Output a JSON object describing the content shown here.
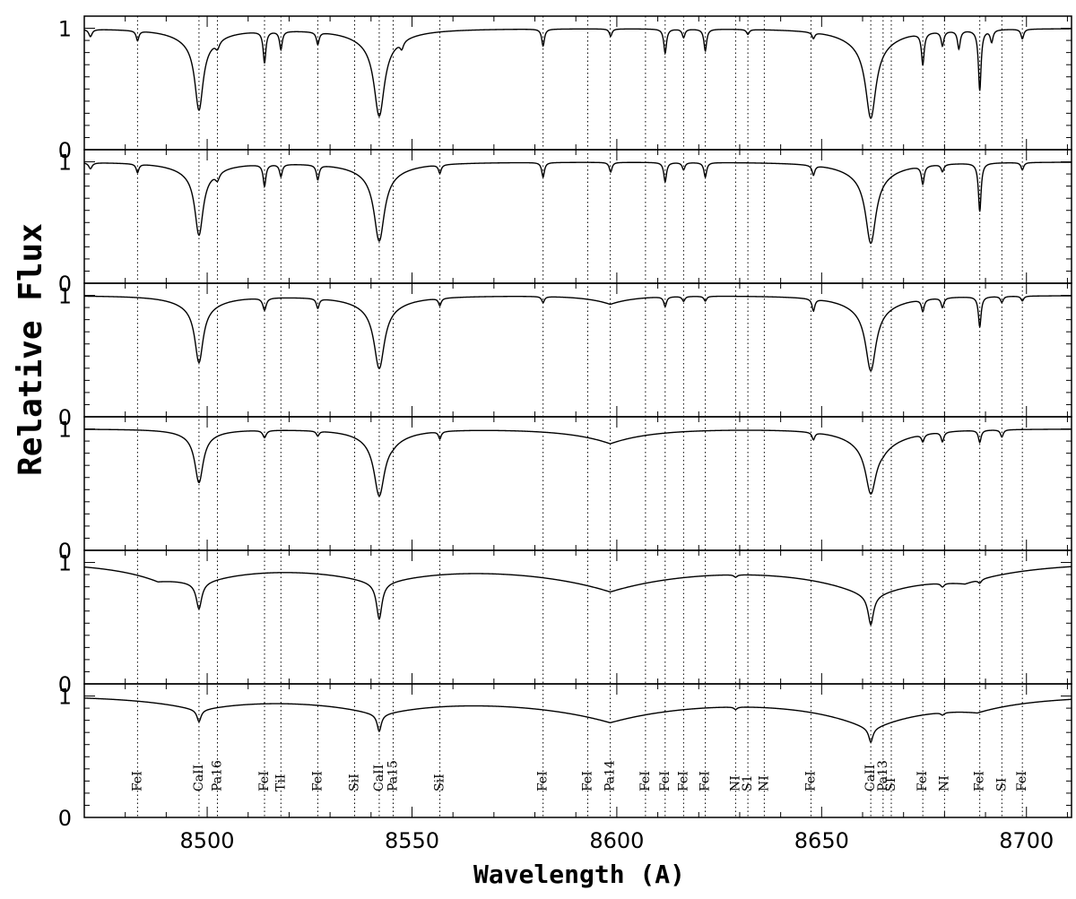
{
  "chart_data": {
    "type": "line",
    "xlabel": "Wavelength (A)",
    "ylabel": "Relative Flux",
    "xlim": [
      8470,
      8711
    ],
    "ylim": [
      0,
      1.1
    ],
    "x_ticks": [
      8500,
      8550,
      8600,
      8650,
      8700
    ],
    "x_tick_labels": [
      "8500",
      "8550",
      "8600",
      "8650",
      "8700"
    ],
    "y_ticks": [
      0,
      1
    ],
    "y_tick_labels": [
      "0",
      "1"
    ],
    "panel_count": 6,
    "grid": false,
    "line_markers": [
      {
        "wavelength": 8483,
        "label": "FeI"
      },
      {
        "wavelength": 8498,
        "label": "CaII"
      },
      {
        "wavelength": 8502.5,
        "label": "Pa16"
      },
      {
        "wavelength": 8514,
        "label": "FeI"
      },
      {
        "wavelength": 8518,
        "label": "TiI"
      },
      {
        "wavelength": 8527,
        "label": "FeI"
      },
      {
        "wavelength": 8536,
        "label": "SiI"
      },
      {
        "wavelength": 8542,
        "label": "CaII"
      },
      {
        "wavelength": 8545.4,
        "label": "Pa15"
      },
      {
        "wavelength": 8556.8,
        "label": "SiI"
      },
      {
        "wavelength": 8582,
        "label": "FeI"
      },
      {
        "wavelength": 8592.9,
        "label": "FeI"
      },
      {
        "wavelength": 8598.4,
        "label": "Pa14"
      },
      {
        "wavelength": 8607,
        "label": "FeI"
      },
      {
        "wavelength": 8611.8,
        "label": "FeI"
      },
      {
        "wavelength": 8616.3,
        "label": "FeI"
      },
      {
        "wavelength": 8621.6,
        "label": "FeI"
      },
      {
        "wavelength": 8629,
        "label": "NI"
      },
      {
        "wavelength": 8632,
        "label": "S1"
      },
      {
        "wavelength": 8636,
        "label": "NI"
      },
      {
        "wavelength": 8647.4,
        "label": "FeI"
      },
      {
        "wavelength": 8662,
        "label": "CaII"
      },
      {
        "wavelength": 8665,
        "label": "Pa13"
      },
      {
        "wavelength": 8667,
        "label": "SI"
      },
      {
        "wavelength": 8674.7,
        "label": "FeI"
      },
      {
        "wavelength": 8680,
        "label": "NI"
      },
      {
        "wavelength": 8688.6,
        "label": "FeI"
      },
      {
        "wavelength": 8694,
        "label": "SI"
      },
      {
        "wavelength": 8699,
        "label": "FeI"
      }
    ],
    "series": [
      {
        "continuum": 1.0,
        "wide_lines": [
          [
            8498,
            0.55,
            1.2
          ],
          [
            8542,
            0.6,
            1.5
          ],
          [
            8662,
            0.6,
            1.5
          ]
        ],
        "wings": [
          [
            8498,
            0.12,
            6
          ],
          [
            8542,
            0.12,
            7
          ],
          [
            8662,
            0.14,
            7
          ]
        ],
        "narrow_lines": [
          [
            8471.5,
            0.06,
            0.5
          ],
          [
            8483,
            0.08,
            0.4
          ],
          [
            8502.5,
            0.06,
            0.6
          ],
          [
            8514,
            0.26,
            0.4
          ],
          [
            8518,
            0.15,
            0.4
          ],
          [
            8527,
            0.1,
            0.4
          ],
          [
            8547.5,
            0.06,
            0.5
          ],
          [
            8582,
            0.14,
            0.4
          ],
          [
            8598.5,
            0.06,
            0.4
          ],
          [
            8611.8,
            0.2,
            0.4
          ],
          [
            8616.3,
            0.07,
            0.4
          ],
          [
            8621.6,
            0.18,
            0.4
          ],
          [
            8632,
            0.04,
            0.4
          ],
          [
            8648,
            0.05,
            0.4
          ],
          [
            8674.7,
            0.26,
            0.4
          ],
          [
            8679.5,
            0.12,
            0.4
          ],
          [
            8683.5,
            0.15,
            0.4
          ],
          [
            8688.6,
            0.5,
            0.4
          ],
          [
            8691.5,
            0.1,
            0.4
          ],
          [
            8699,
            0.08,
            0.4
          ]
        ],
        "balmer_like": []
      },
      {
        "continuum": 1.0,
        "wide_lines": [
          [
            8498,
            0.5,
            1.2
          ],
          [
            8542,
            0.55,
            1.5
          ],
          [
            8662,
            0.55,
            1.5
          ]
        ],
        "wings": [
          [
            8498,
            0.1,
            6
          ],
          [
            8542,
            0.1,
            7
          ],
          [
            8662,
            0.12,
            7
          ]
        ],
        "narrow_lines": [
          [
            8471.5,
            0.05,
            0.5
          ],
          [
            8483,
            0.07,
            0.4
          ],
          [
            8502.5,
            0.06,
            0.6
          ],
          [
            8514,
            0.18,
            0.4
          ],
          [
            8518,
            0.1,
            0.4
          ],
          [
            8527,
            0.12,
            0.4
          ],
          [
            8556.8,
            0.07,
            0.4
          ],
          [
            8582,
            0.12,
            0.4
          ],
          [
            8598.5,
            0.08,
            0.4
          ],
          [
            8611.8,
            0.16,
            0.4
          ],
          [
            8616.3,
            0.06,
            0.4
          ],
          [
            8621.6,
            0.12,
            0.4
          ],
          [
            8648,
            0.08,
            0.4
          ],
          [
            8674.7,
            0.15,
            0.4
          ],
          [
            8679.5,
            0.06,
            0.4
          ],
          [
            8688.6,
            0.4,
            0.4
          ],
          [
            8699,
            0.06,
            0.4
          ]
        ],
        "balmer_like": []
      },
      {
        "continuum": 1.0,
        "wide_lines": [
          [
            8498,
            0.45,
            1.2
          ],
          [
            8542,
            0.5,
            1.5
          ],
          [
            8662,
            0.5,
            1.5
          ]
        ],
        "wings": [
          [
            8498,
            0.1,
            6
          ],
          [
            8542,
            0.1,
            7
          ],
          [
            8662,
            0.12,
            7
          ]
        ],
        "narrow_lines": [
          [
            8514,
            0.1,
            0.5
          ],
          [
            8527,
            0.08,
            0.4
          ],
          [
            8556.8,
            0.06,
            0.4
          ],
          [
            8582,
            0.05,
            0.4
          ],
          [
            8611.8,
            0.08,
            0.4
          ],
          [
            8616.3,
            0.04,
            0.4
          ],
          [
            8621.6,
            0.04,
            0.4
          ],
          [
            8648,
            0.1,
            0.4
          ],
          [
            8674.7,
            0.1,
            0.4
          ],
          [
            8679.5,
            0.08,
            0.4
          ],
          [
            8688.6,
            0.25,
            0.4
          ],
          [
            8694,
            0.05,
            0.4
          ],
          [
            8699,
            0.04,
            0.4
          ]
        ],
        "balmer_like": [
          [
            8598.4,
            0.07,
            6
          ]
        ]
      },
      {
        "continuum": 1.0,
        "wide_lines": [
          [
            8498,
            0.38,
            1.2
          ],
          [
            8542,
            0.45,
            1.5
          ],
          [
            8662,
            0.38,
            1.5
          ]
        ],
        "wings": [
          [
            8498,
            0.06,
            5
          ],
          [
            8542,
            0.08,
            6
          ],
          [
            8662,
            0.1,
            6
          ]
        ],
        "narrow_lines": [
          [
            8514,
            0.06,
            0.5
          ],
          [
            8527,
            0.04,
            0.4
          ],
          [
            8556.8,
            0.06,
            0.4
          ],
          [
            8648,
            0.06,
            0.4
          ],
          [
            8674.7,
            0.06,
            0.4
          ],
          [
            8679.5,
            0.08,
            0.4
          ],
          [
            8688.6,
            0.1,
            0.4
          ],
          [
            8694,
            0.06,
            0.4
          ]
        ],
        "balmer_like": [
          [
            8598.4,
            0.12,
            10
          ],
          [
            8545.4,
            0.04,
            5
          ],
          [
            8665,
            0.08,
            8
          ]
        ]
      },
      {
        "continuum": 1.0,
        "wide_lines": [
          [
            8498,
            0.2,
            0.8
          ],
          [
            8542,
            0.28,
            0.8
          ],
          [
            8662,
            0.22,
            0.8
          ]
        ],
        "wings": [],
        "narrow_lines": [
          [
            8629,
            0.02,
            0.5
          ],
          [
            8679.5,
            0.03,
            0.5
          ],
          [
            8688.6,
            0.03,
            0.5
          ]
        ],
        "balmer_like": [
          [
            8498,
            0.14,
            15
          ],
          [
            8542,
            0.16,
            16
          ],
          [
            8598.4,
            0.23,
            22
          ],
          [
            8662,
            0.26,
            18
          ],
          [
            8488,
            0.08,
            10
          ],
          [
            8685,
            0.1,
            14
          ]
        ]
      },
      {
        "continuum": 1.0,
        "wide_lines": [
          [
            8498,
            0.09,
            0.6
          ],
          [
            8542,
            0.13,
            0.6
          ],
          [
            8662,
            0.1,
            0.6
          ]
        ],
        "wings": [],
        "narrow_lines": [
          [
            8629,
            0.02,
            0.5
          ],
          [
            8679.5,
            0.02,
            0.5
          ]
        ],
        "balmer_like": [
          [
            8498,
            0.11,
            14
          ],
          [
            8542,
            0.14,
            16
          ],
          [
            8598.4,
            0.21,
            22
          ],
          [
            8662,
            0.26,
            17
          ],
          [
            8688,
            0.08,
            12
          ]
        ]
      }
    ]
  }
}
